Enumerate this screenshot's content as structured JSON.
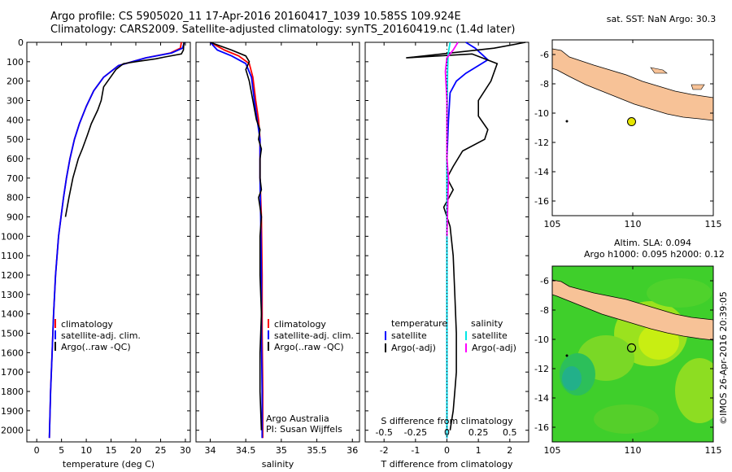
{
  "header": {
    "line1": "Argo profile: CS 5905020_11 17-Apr-2016 20160417_1039 10.585S 109.924E",
    "line2": "Climatology: CARS2009. Satellite-adjusted climatology: synTS_20160419.nc (1.4d later)"
  },
  "colors": {
    "climatology": "#ff0000",
    "satellite": "#0000ff",
    "argo": "#000000",
    "salinity_satellite": "#00e6e6",
    "salinity_argo": "#ff00ff",
    "land": "#f7c297",
    "marker": "#e6e600"
  },
  "chart_data": [
    {
      "type": "line",
      "panel": "temperature",
      "xlabel": "temperature (deg C)",
      "xlim": [
        -2,
        31
      ],
      "xticks": [
        "0",
        "5",
        "10",
        "15",
        "20",
        "25",
        "30"
      ],
      "ylim": [
        2060,
        0
      ],
      "yticks": [
        "0",
        "100",
        "200",
        "300",
        "400",
        "500",
        "600",
        "700",
        "800",
        "900",
        "1000",
        "1100",
        "1200",
        "1300",
        "1400",
        "1500",
        "1600",
        "1700",
        "1800",
        "1900",
        "2000"
      ],
      "legend": [
        "climatology",
        "satellite-adj. clim.",
        "Argo(..raw -QC)"
      ],
      "series": [
        {
          "name": "climatology",
          "color": "#ff0000",
          "x": [
            29.2,
            29.0,
            27.0,
            22.0,
            16.5,
            13.5,
            11.5,
            10.0,
            8.6,
            7.6,
            6.7,
            6.0,
            5.4,
            4.4,
            3.8,
            3.4,
            3.1,
            2.8,
            2.55
          ],
          "y": [
            0,
            30,
            55,
            80,
            120,
            180,
            250,
            330,
            420,
            500,
            600,
            700,
            800,
            1000,
            1200,
            1400,
            1600,
            1800,
            2040
          ]
        },
        {
          "name": "satellite-adj. clim.",
          "color": "#0000ff",
          "x": [
            29.8,
            29.4,
            27.2,
            22.0,
            16.5,
            13.5,
            11.5,
            10.0,
            8.6,
            7.6,
            6.7,
            6.0,
            5.4,
            4.4,
            3.8,
            3.4,
            3.1,
            2.8,
            2.55
          ],
          "y": [
            0,
            30,
            55,
            80,
            120,
            180,
            250,
            330,
            420,
            500,
            600,
            700,
            800,
            1000,
            1200,
            1400,
            1600,
            1800,
            2040
          ]
        },
        {
          "name": "Argo(..raw -QC)",
          "color": "#000000",
          "x": [
            29.7,
            29.6,
            29.2,
            26.0,
            24.0,
            20.0,
            17.5,
            16.0,
            13.5,
            13.0,
            12.3,
            11.0,
            10.2,
            9.2,
            8.4,
            7.3,
            6.5,
            5.8
          ],
          "y": [
            0,
            40,
            60,
            75,
            85,
            100,
            110,
            140,
            230,
            300,
            350,
            420,
            480,
            550,
            600,
            700,
            800,
            900
          ]
        }
      ]
    },
    {
      "type": "line",
      "panel": "salinity",
      "xlabel": "salinity",
      "xlim": [
        33.8,
        36.1
      ],
      "xticks": [
        "34",
        "34.5",
        "35",
        "35.5",
        "36"
      ],
      "ylim": [
        2060,
        0
      ],
      "legend": [
        "climatology",
        "satellite-adj. clim.",
        "Argo(..raw -QC)"
      ],
      "annotations": [
        "Argo Australia",
        "PI: Susan Wijffels"
      ],
      "series": [
        {
          "name": "climatology",
          "color": "#ff0000",
          "x": [
            34.0,
            34.2,
            34.4,
            34.55,
            34.6,
            34.64,
            34.68,
            34.7,
            34.7,
            34.7,
            34.72,
            34.73,
            34.73,
            34.74,
            34.74
          ],
          "y": [
            0,
            40,
            70,
            110,
            180,
            300,
            400,
            500,
            600,
            700,
            900,
            1200,
            1500,
            1800,
            2040
          ]
        },
        {
          "name": "satellite-adj. clim.",
          "color": "#0000ff",
          "x": [
            34.0,
            34.1,
            34.3,
            34.5,
            34.58,
            34.62,
            34.66,
            34.7,
            34.7,
            34.7,
            34.71,
            34.72,
            34.72,
            34.73,
            34.73
          ],
          "y": [
            0,
            40,
            70,
            110,
            180,
            300,
            400,
            500,
            600,
            700,
            900,
            1200,
            1500,
            1800,
            2040
          ]
        },
        {
          "name": "Argo(..raw -QC)",
          "color": "#000000",
          "x": [
            34.0,
            34.3,
            34.5,
            34.55,
            34.5,
            34.55,
            34.6,
            34.65,
            34.7,
            34.68,
            34.72,
            34.7,
            34.7,
            34.72,
            34.68,
            34.7,
            34.72,
            34.7,
            34.7,
            34.72,
            34.7,
            34.7,
            34.72
          ],
          "y": [
            0,
            40,
            70,
            100,
            140,
            200,
            300,
            400,
            450,
            500,
            550,
            600,
            700,
            760,
            800,
            850,
            900,
            1000,
            1200,
            1400,
            1600,
            1800,
            2000
          ]
        }
      ]
    },
    {
      "type": "line",
      "panel": "differences",
      "xlabel": "T difference from climatology",
      "xlabel_top": "S difference from climatology",
      "xlim": [
        -2.6,
        2.6
      ],
      "xticks": [
        "-2",
        "-1",
        "0",
        "1",
        "2"
      ],
      "xticks_top": [
        "-0.5",
        "-0.25",
        "0",
        "0.25",
        "0.5"
      ],
      "ylim": [
        2060,
        0
      ],
      "legend_temperature": [
        "temperature",
        "satellite",
        "Argo(-adj)"
      ],
      "legend_salinity": [
        "salinity",
        "satellite",
        "Argo(-adj)"
      ],
      "series": [
        {
          "name": "satellite",
          "color": "#0000ff",
          "x": [
            0.6,
            0.9,
            1.1,
            1.3,
            1.0,
            0.6,
            0.3,
            0.1,
            0.05,
            0.0,
            0.0,
            0.0
          ],
          "y": [
            0,
            30,
            60,
            90,
            120,
            160,
            200,
            260,
            400,
            600,
            1000,
            2040
          ]
        },
        {
          "name": "Argo(-adj)",
          "color": "#000000",
          "x": [
            2.5,
            1.5,
            -1.3,
            0.8,
            1.6,
            1.4,
            1.0,
            1.0,
            1.3,
            1.2,
            0.5,
            0.2,
            0.0,
            0.2,
            -0.1,
            0.1,
            0.2,
            0.25,
            0.3,
            0.3,
            0.25,
            0.2,
            0.1
          ],
          "y": [
            0,
            30,
            80,
            60,
            110,
            200,
            300,
            380,
            450,
            500,
            560,
            640,
            700,
            760,
            850,
            950,
            1100,
            1300,
            1500,
            1700,
            1800,
            1900,
            2000
          ]
        },
        {
          "name": "satellite",
          "color": "#00e6e6",
          "x": [
            0.1,
            0.04,
            0.02,
            0.01,
            0.0,
            0.0,
            0.0
          ],
          "y": [
            0,
            60,
            150,
            300,
            600,
            1000,
            2040
          ]
        },
        {
          "name": "Argo(-adj)",
          "color": "#ff00ff",
          "x": [
            0.35,
            0.2,
            0.0,
            -0.05,
            0.0,
            0.0,
            0.05,
            0.03,
            0.0
          ],
          "y": [
            0,
            40,
            80,
            150,
            300,
            600,
            700,
            800,
            1000
          ]
        }
      ]
    }
  ],
  "maps": {
    "top": {
      "label": "sat. SST: NaN Argo: 30.3",
      "xlim": [
        105,
        115
      ],
      "ylim": [
        -17,
        -5
      ],
      "xticks": [
        "105",
        "110",
        "115"
      ],
      "yticks": [
        "-6",
        "-8",
        "-10",
        "-12",
        "-14",
        "-16"
      ],
      "profile_lon": 109.924,
      "profile_lat": -10.585
    },
    "bottom": {
      "label1": "Altim. SLA: 0.094",
      "label2": "Argo h1000: 0.095 h2000: 0.12",
      "xlim": [
        105,
        115
      ],
      "ylim": [
        -17,
        -5
      ],
      "xticks": [
        "105",
        "110",
        "115"
      ],
      "yticks": [
        "-6",
        "-8",
        "-10",
        "-12",
        "-14",
        "-16"
      ],
      "profile_lon": 109.924,
      "profile_lat": -10.585
    }
  },
  "credit": "©IMOS 26-Apr-2016 20:39:05"
}
